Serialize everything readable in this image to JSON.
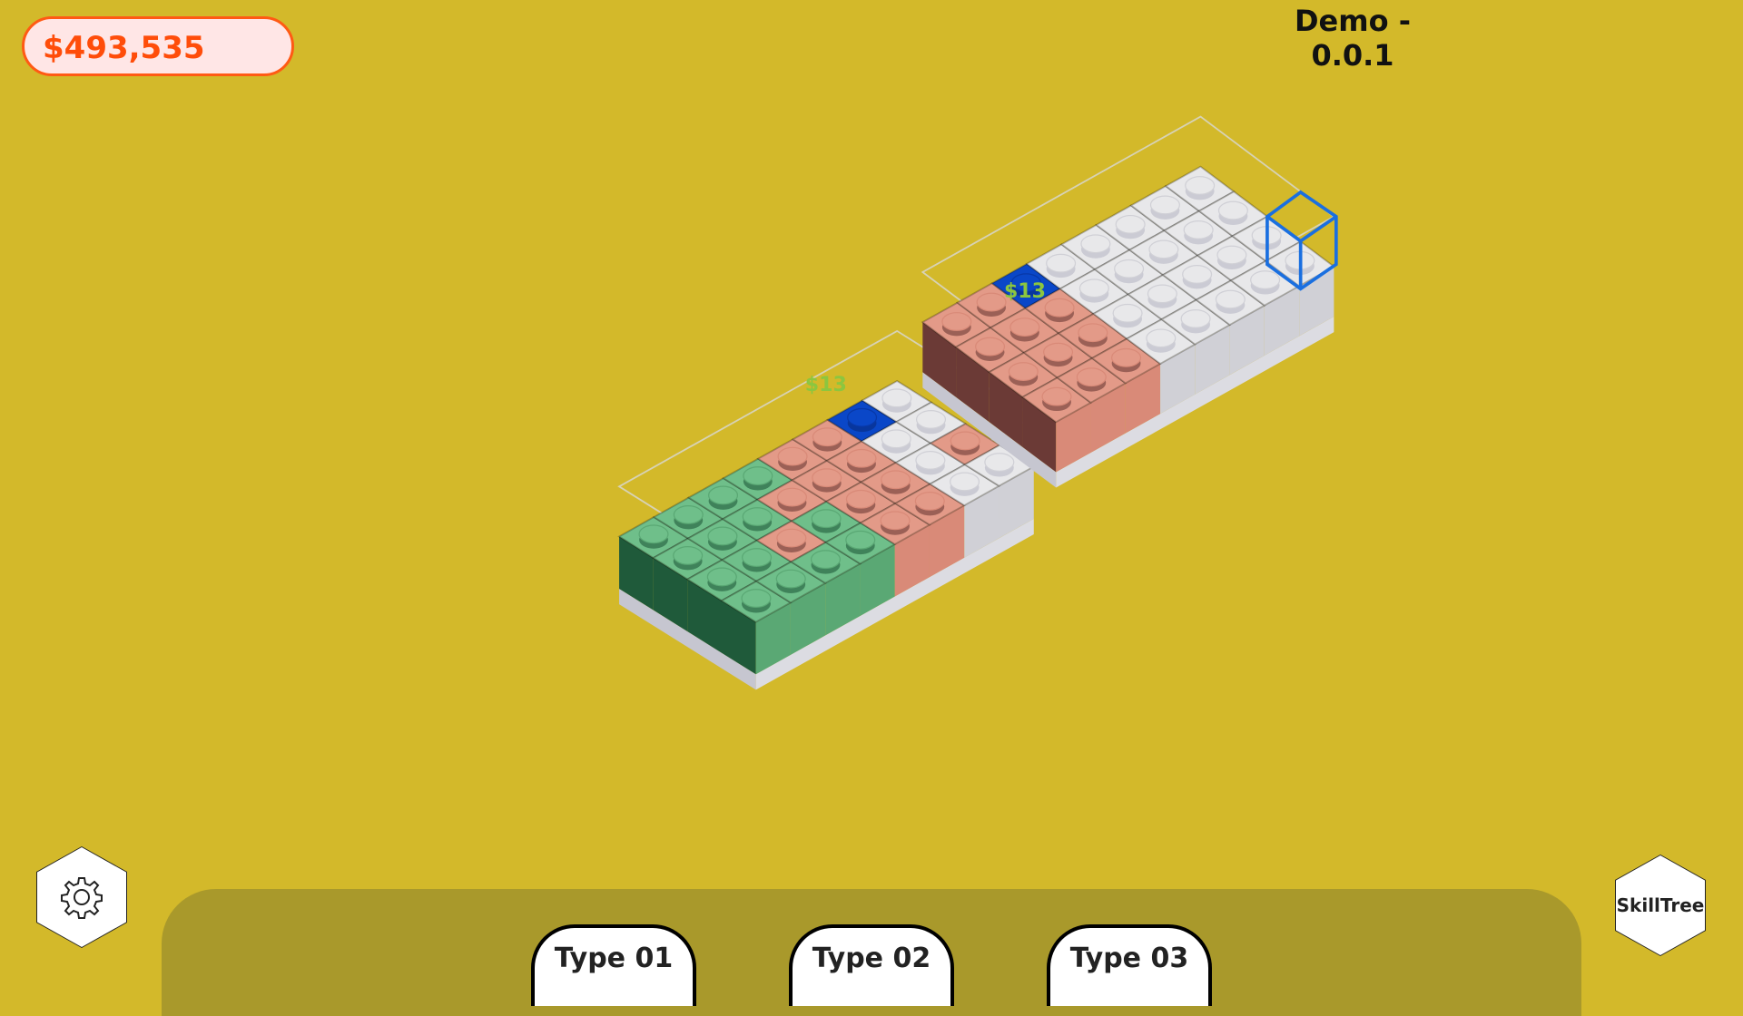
{
  "hud": {
    "money": "$493,535",
    "title": "Demo - 0.0.1",
    "settings_icon": "gear-icon",
    "skilltree_label": "SkillTree"
  },
  "toolbar": {
    "types": [
      {
        "label": "Type 01"
      },
      {
        "label": "Type 02"
      },
      {
        "label": "Type 03"
      }
    ]
  },
  "scene": {
    "price_labels": [
      "$13",
      "$13"
    ],
    "colors": {
      "background": "#d3b92a",
      "tray": "#a9992b",
      "money_text": "#ff4d0a",
      "green": "#6fbf8a",
      "salmon": "#e39a88",
      "white": "#e8e8ea",
      "blue": "#0a47c8",
      "cursor": "#1a6fe0",
      "price": "#8cc63f"
    },
    "boards": [
      {
        "grid": [
          "GGGGSSBW",
          "GGGSSSWW",
          "GGSGSSWS",
          "GGGGSSWW"
        ]
      },
      {
        "grid": [
          "SSBWWWWW",
          "SSSWWWWW",
          "SSSWWWWW",
          "SSSWWWWW"
        ]
      }
    ]
  }
}
